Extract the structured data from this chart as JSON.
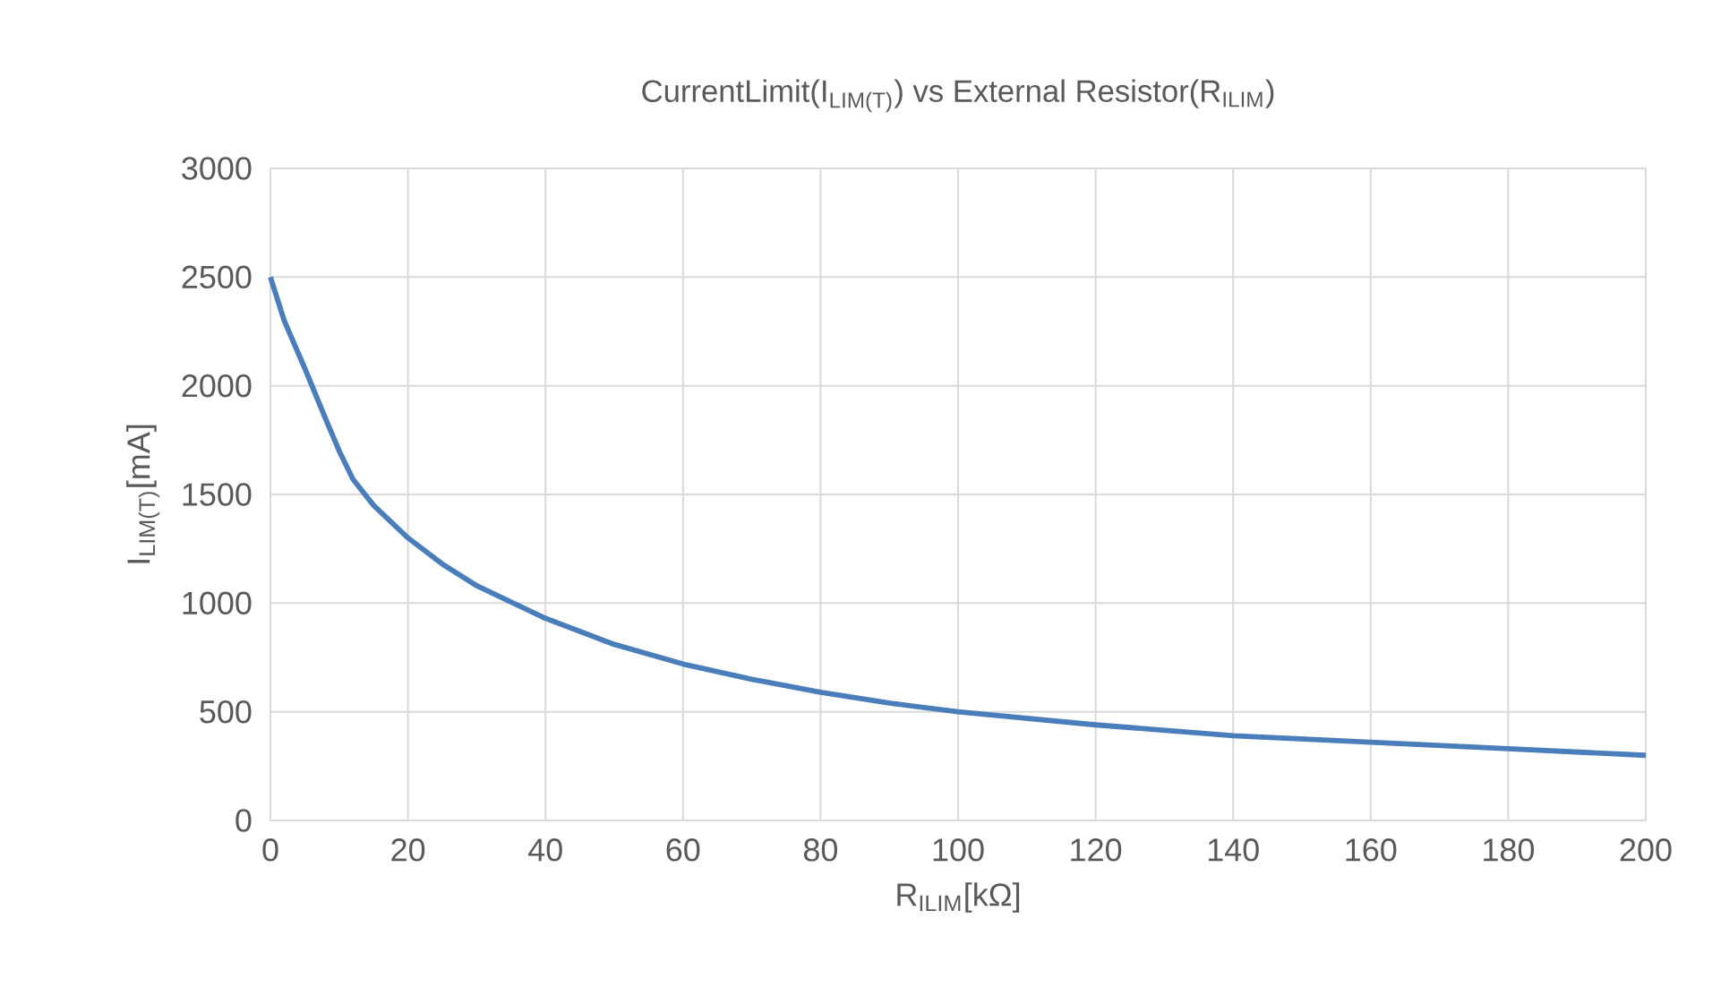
{
  "chart_data": {
    "type": "line",
    "title": "CurrentLimit(I$_{LIM(T)}$) vs External Resistor(R$_{ILIM}$)",
    "xlabel": "R$_{ILIM}$[kΩ]",
    "ylabel": "I$_{LIM(T)}$[mA]",
    "series": [
      {
        "color": "#4a7ebb",
        "x": [
          0,
          2,
          5,
          8,
          10,
          12,
          15,
          20,
          25,
          30,
          40,
          50,
          60,
          70,
          80,
          90,
          100,
          120,
          140,
          160,
          180,
          200
        ],
        "values": [
          2500,
          2300,
          2080,
          1850,
          1700,
          1570,
          1450,
          1300,
          1180,
          1080,
          930,
          810,
          720,
          650,
          590,
          540,
          500,
          440,
          390,
          360,
          330,
          300
        ]
      }
    ],
    "xlim": [
      0,
      200
    ],
    "xticks": [
      0,
      20,
      40,
      60,
      80,
      100,
      120,
      140,
      160,
      180,
      200
    ],
    "ylim": [
      0,
      3000
    ],
    "yticks": [
      0,
      500,
      1000,
      1500,
      2000,
      2500,
      3000
    ],
    "grid": true,
    "marker": "none",
    "line_style": "solid"
  }
}
